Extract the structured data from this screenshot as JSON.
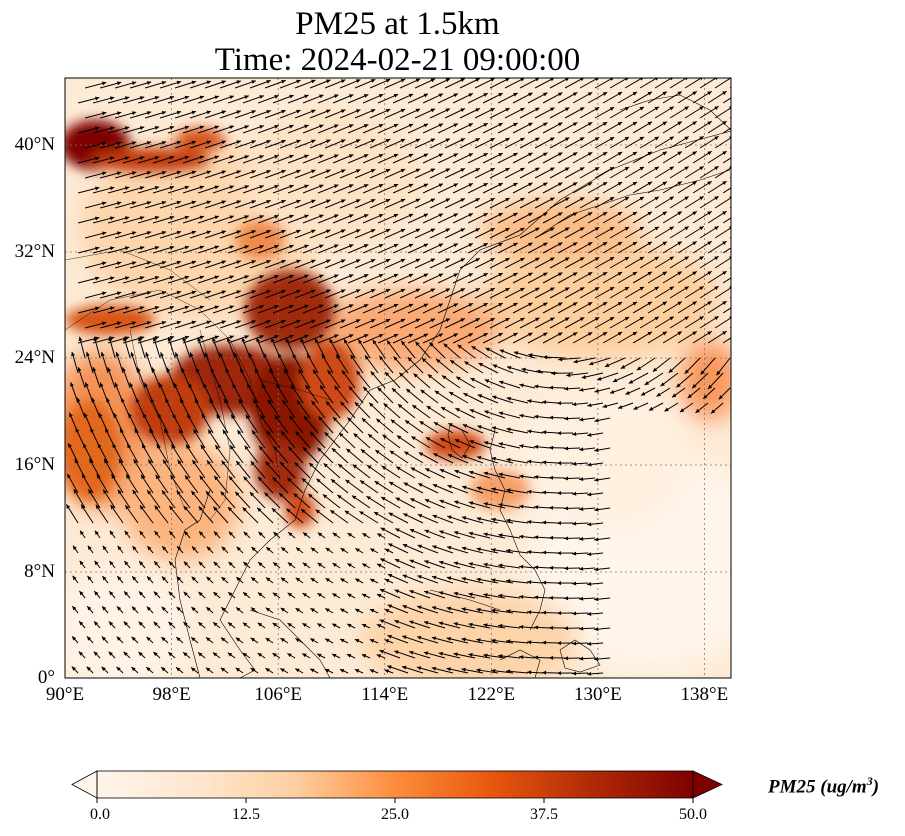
{
  "title": {
    "line1": "PM25 at 1.5km",
    "line2": "Time: 2024-02-21 09:00:00"
  },
  "map": {
    "variable": "PM25",
    "level": "1.5km",
    "lon_range": [
      90,
      140
    ],
    "lat_range": [
      0,
      45
    ],
    "lat_ticks": [
      "0°",
      "8°N",
      "16°N",
      "24°N",
      "32°N",
      "40°N"
    ],
    "lon_ticks": [
      "90°E",
      "98°E",
      "106°E",
      "114°E",
      "122°E",
      "130°E",
      "138°E"
    ],
    "gridlines": true,
    "overlays": [
      "coastlines",
      "country-borders",
      "wind-vectors"
    ]
  },
  "colorbar": {
    "ticks": [
      "0.0",
      "12.5",
      "25.0",
      "37.5",
      "50.0"
    ],
    "label_main": "PM25 (ug/m",
    "label_exp": "3",
    "label_end": ")",
    "colormap": [
      "#fff5eb",
      "#fdd9b2",
      "#fdae6b",
      "#f16913",
      "#d94801",
      "#a63603",
      "#7f0000"
    ],
    "extend": "both"
  }
}
